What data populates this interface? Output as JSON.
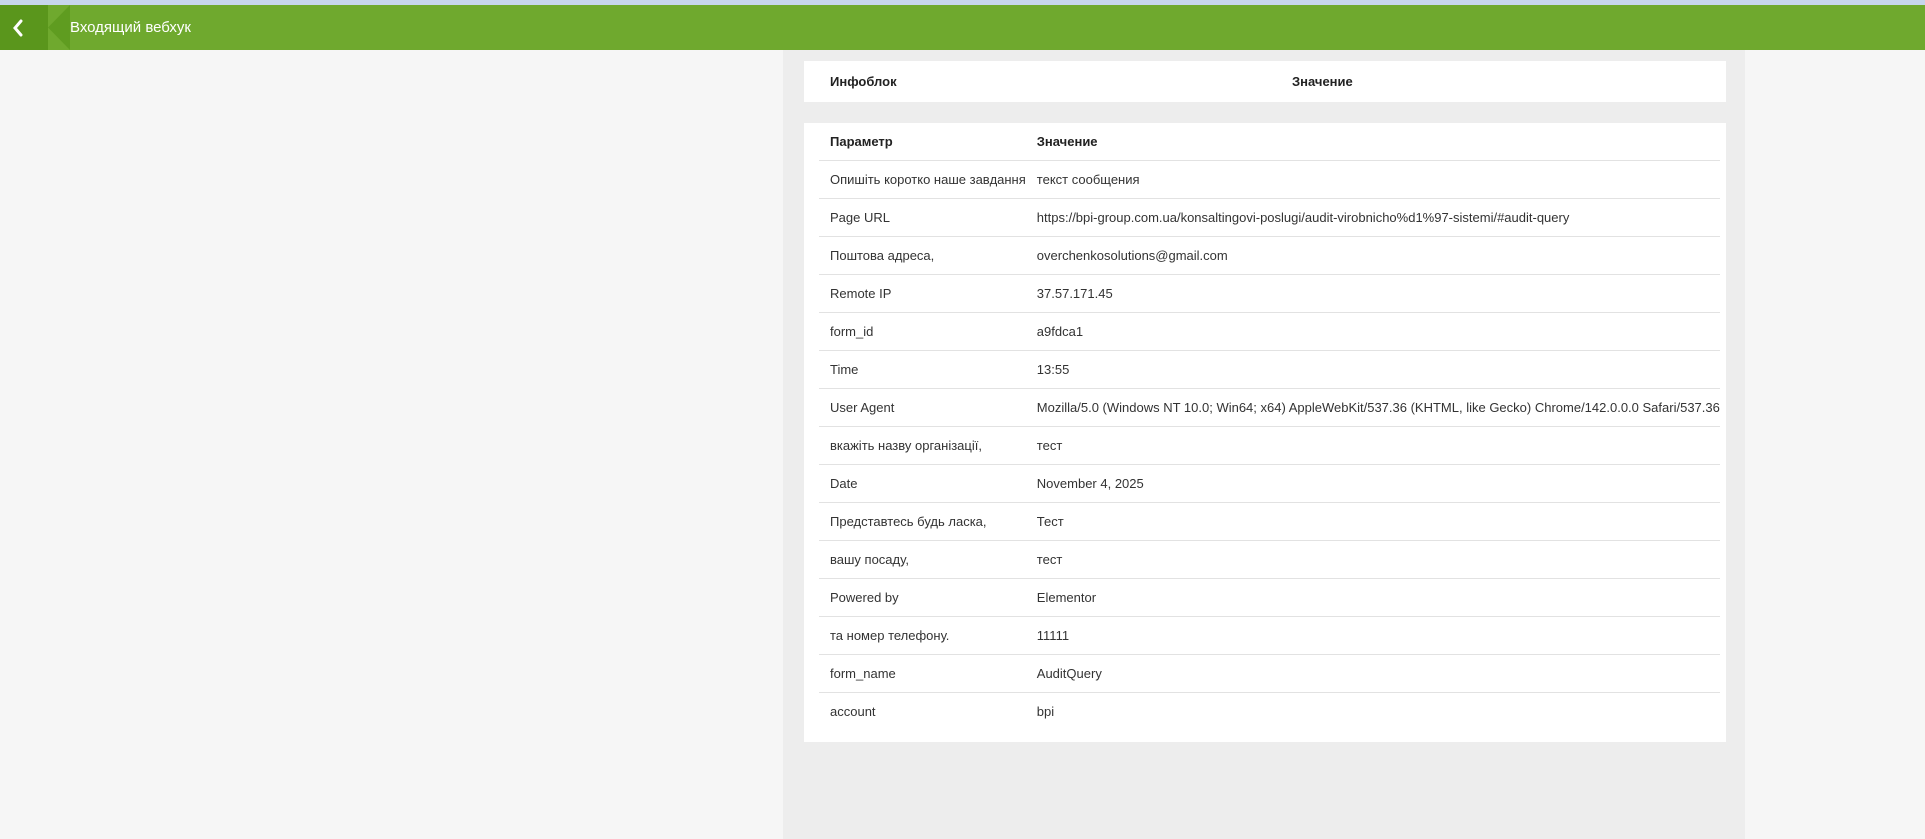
{
  "header": {
    "title": "Входящий вебхук",
    "back_icon": "chevron-left-icon",
    "color": "#6fa92e"
  },
  "infoblock": {
    "col1": "Инфоблок",
    "col2": "Значение"
  },
  "params": {
    "col1": "Параметр",
    "col2": "Значение",
    "rows": [
      {
        "param": "Опишіть коротко наше завдання",
        "value": "текст сообщения"
      },
      {
        "param": "Page URL",
        "value": "https://bpi-group.com.ua/konsaltingovi-poslugi/audit-virobnicho%d1%97-sistemi/#audit-query"
      },
      {
        "param": "Поштова адреса,",
        "value": "overchenkosolutions@gmail.com"
      },
      {
        "param": "Remote IP",
        "value": "37.57.171.45"
      },
      {
        "param": "form_id",
        "value": "a9fdca1"
      },
      {
        "param": "Time",
        "value": "13:55"
      },
      {
        "param": "User Agent",
        "value": "Mozilla/5.0 (Windows NT 10.0; Win64; x64) AppleWebKit/537.36 (KHTML, like Gecko) Chrome/142.0.0.0 Safari/537.36"
      },
      {
        "param": "вкажіть назву організації,",
        "value": "тест"
      },
      {
        "param": "Date",
        "value": "November 4, 2025"
      },
      {
        "param": "Представтесь будь ласка,",
        "value": "Тест"
      },
      {
        "param": "вашу посаду,",
        "value": "тест"
      },
      {
        "param": "Powered by",
        "value": "Elementor"
      },
      {
        "param": "та номер телефону.",
        "value": "11111"
      },
      {
        "param": "form_name",
        "value": "AuditQuery"
      },
      {
        "param": "account",
        "value": "bpi"
      }
    ]
  }
}
